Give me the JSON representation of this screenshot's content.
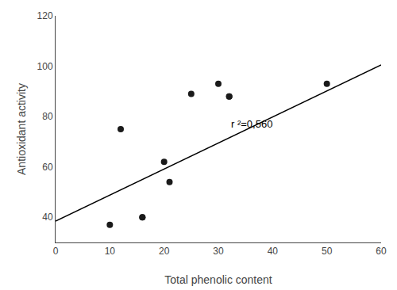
{
  "chart_data": {
    "type": "scatter",
    "xlabel": "Total phenolic content",
    "ylabel": "Antioxidant activity",
    "series": [
      {
        "type": "scatter",
        "marker": "circle",
        "color": "#1a1a1a",
        "x": [
          10,
          12,
          16,
          16,
          20,
          21,
          25,
          30,
          32,
          32,
          50
        ],
        "values": [
          37,
          75,
          40,
          40,
          62,
          54,
          89,
          93,
          88,
          88,
          93
        ]
      },
      {
        "type": "line",
        "line_style": "solid",
        "color": "#000000",
        "x": [
          0,
          60
        ],
        "values": [
          38.5,
          100.5
        ]
      }
    ],
    "annotations": [
      {
        "text": "r ²=0,560",
        "x": 32,
        "y": 74
      }
    ],
    "xlim": [
      0,
      60
    ],
    "ylim": [
      30,
      120
    ],
    "xticks": [
      0,
      10,
      20,
      30,
      40,
      50,
      60
    ],
    "yticks": [
      40,
      60,
      80,
      100,
      120
    ],
    "grid": false
  }
}
